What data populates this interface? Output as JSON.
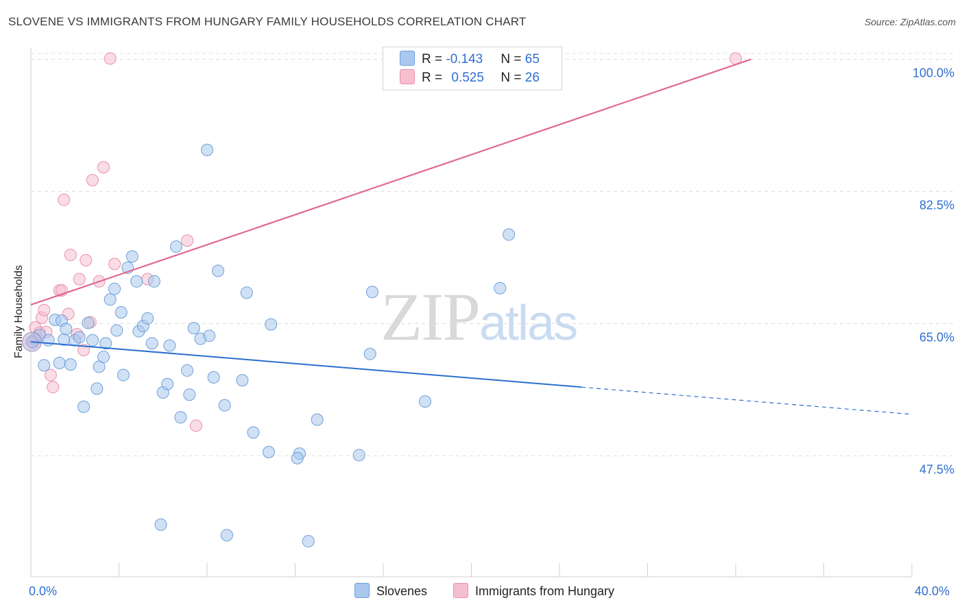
{
  "title": "SLOVENE VS IMMIGRANTS FROM HUNGARY FAMILY HOUSEHOLDS CORRELATION CHART",
  "source": "Source: ZipAtlas.com",
  "watermark": {
    "zip": "ZIP",
    "atlas": "atlas"
  },
  "legend": {
    "row1": {
      "r_label": "R = ",
      "r_value": "-0.143",
      "n_label": "N = ",
      "n_value": "65"
    },
    "row2": {
      "r_label": "R = ",
      "r_value": "0.525",
      "n_label": "N = ",
      "n_value": "26"
    }
  },
  "colors": {
    "blue_fill": "#a9c8ee",
    "blue_stroke": "#6f9fd8",
    "blue_line": "#2a6fce",
    "pink_fill": "#f6bfd0",
    "pink_stroke": "#e890ab",
    "pink_line": "#e06890",
    "grid": "#dddddd",
    "tick_text": "#2e6fd0"
  },
  "chart_data": {
    "type": "scatter",
    "title": "SLOVENE VS IMMIGRANTS FROM HUNGARY FAMILY HOUSEHOLDS CORRELATION CHART",
    "xlabel": "",
    "ylabel": "Family Households",
    "xlim": [
      0,
      40
    ],
    "ylim": [
      31.5,
      101.5
    ],
    "x_tick_labels": [
      "0.0%",
      "40.0%"
    ],
    "y_ticks": [
      47.5,
      65.0,
      82.5,
      100.0
    ],
    "y_tick_labels": [
      "47.5%",
      "65.0%",
      "82.5%",
      "100.0%"
    ],
    "legend_position": "top-center",
    "series": [
      {
        "name": "Slovenes",
        "color": "#a9c8ee",
        "r": -0.143,
        "n": 65,
        "trend": {
          "x_start": 0,
          "y_start": 62.6,
          "x_solid_end": 25.0,
          "y_solid_end": 56.6,
          "x_end": 40,
          "y_end": 53.0
        },
        "points": [
          [
            0.1,
            62.5
          ],
          [
            0.2,
            63.0
          ],
          [
            0.4,
            63.5
          ],
          [
            0.6,
            59.5
          ],
          [
            0.8,
            62.8
          ],
          [
            1.1,
            65.5
          ],
          [
            1.3,
            59.8
          ],
          [
            1.4,
            65.4
          ],
          [
            1.5,
            62.9
          ],
          [
            1.6,
            64.3
          ],
          [
            1.8,
            59.6
          ],
          [
            2.0,
            62.8
          ],
          [
            2.2,
            63.2
          ],
          [
            2.4,
            54.0
          ],
          [
            2.6,
            65.1
          ],
          [
            2.8,
            62.8
          ],
          [
            3.0,
            56.4
          ],
          [
            3.1,
            59.3
          ],
          [
            3.3,
            60.6
          ],
          [
            3.4,
            62.4
          ],
          [
            3.6,
            68.2
          ],
          [
            3.8,
            69.6
          ],
          [
            3.9,
            64.1
          ],
          [
            4.1,
            66.5
          ],
          [
            4.2,
            58.2
          ],
          [
            4.4,
            72.4
          ],
          [
            4.6,
            73.9
          ],
          [
            4.8,
            70.6
          ],
          [
            4.9,
            64.0
          ],
          [
            5.1,
            64.7
          ],
          [
            5.3,
            65.7
          ],
          [
            5.5,
            62.4
          ],
          [
            5.6,
            70.6
          ],
          [
            5.9,
            38.4
          ],
          [
            6.0,
            55.9
          ],
          [
            6.2,
            57.0
          ],
          [
            6.3,
            62.1
          ],
          [
            6.6,
            75.2
          ],
          [
            6.8,
            52.6
          ],
          [
            7.1,
            58.8
          ],
          [
            7.2,
            55.6
          ],
          [
            7.4,
            64.4
          ],
          [
            7.7,
            63.0
          ],
          [
            8.0,
            88.0
          ],
          [
            8.1,
            63.4
          ],
          [
            8.3,
            57.9
          ],
          [
            8.5,
            72.0
          ],
          [
            8.8,
            54.2
          ],
          [
            8.9,
            37.0
          ],
          [
            9.6,
            57.5
          ],
          [
            9.8,
            69.1
          ],
          [
            10.1,
            50.6
          ],
          [
            10.9,
            64.9
          ],
          [
            10.8,
            48.0
          ],
          [
            12.2,
            47.8
          ],
          [
            12.1,
            47.2
          ],
          [
            12.6,
            36.2
          ],
          [
            13.0,
            52.3
          ],
          [
            14.9,
            47.6
          ],
          [
            15.4,
            61.0
          ],
          [
            15.5,
            69.2
          ],
          [
            17.9,
            54.7
          ],
          [
            21.3,
            69.7
          ],
          [
            21.7,
            76.8
          ],
          [
            0.05,
            62.6
          ]
        ]
      },
      {
        "name": "Immigrants from Hungary",
        "color": "#f6bfd0",
        "r": 0.525,
        "n": 26,
        "trend": {
          "x_start": 0,
          "y_start": 67.5,
          "x_end": 32.7,
          "y_end": 100.0
        },
        "points": [
          [
            0.2,
            64.5
          ],
          [
            0.4,
            63.8
          ],
          [
            0.5,
            65.8
          ],
          [
            0.6,
            66.8
          ],
          [
            0.7,
            63.9
          ],
          [
            0.9,
            58.2
          ],
          [
            1.0,
            56.6
          ],
          [
            1.3,
            69.4
          ],
          [
            1.4,
            69.4
          ],
          [
            1.5,
            81.4
          ],
          [
            1.7,
            66.3
          ],
          [
            1.8,
            74.1
          ],
          [
            2.1,
            63.6
          ],
          [
            2.2,
            70.9
          ],
          [
            2.4,
            61.5
          ],
          [
            2.5,
            73.4
          ],
          [
            2.7,
            65.2
          ],
          [
            2.8,
            84.0
          ],
          [
            3.1,
            70.6
          ],
          [
            3.3,
            85.7
          ],
          [
            3.6,
            100.1
          ],
          [
            3.8,
            72.9
          ],
          [
            5.3,
            70.9
          ],
          [
            7.5,
            51.5
          ],
          [
            7.1,
            76.0
          ],
          [
            32.0,
            100.1
          ]
        ]
      }
    ]
  },
  "bottom_legend": {
    "slovenes": "Slovenes",
    "hungary": "Immigrants from Hungary"
  }
}
